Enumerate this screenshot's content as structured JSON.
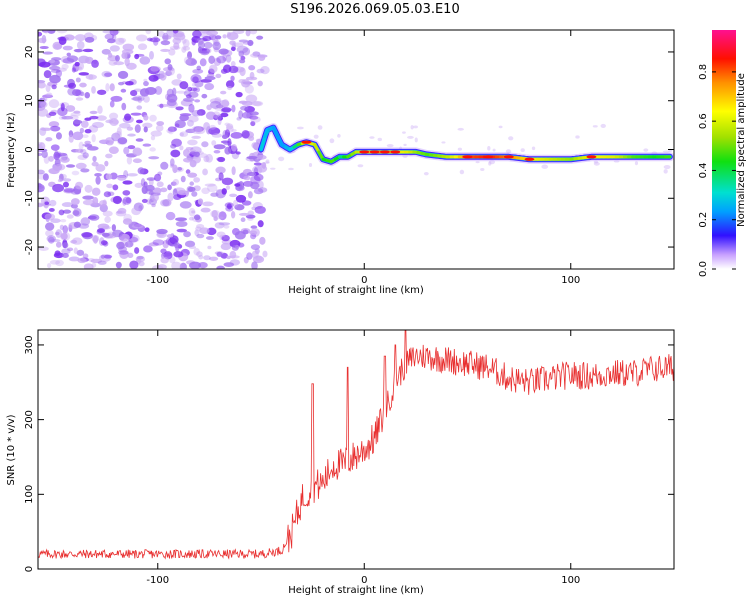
{
  "title": "S196.2026.069.05.03.E10",
  "colors": {
    "noise": "#7a2cf0",
    "noise_light": "#c9a8f5",
    "line": "#e83030",
    "axis": "#000000"
  },
  "chart_data": [
    {
      "type": "heatmap",
      "title": "S196.2026.069.05.03.E10",
      "xlabel": "Height of straight line (km)",
      "ylabel": "Frequency (Hz)",
      "xlim": [
        -158,
        150
      ],
      "ylim": [
        -24.5,
        24.5
      ],
      "xticks": [
        -100,
        0,
        100
      ],
      "yticks": [
        20,
        10,
        0,
        -10,
        -20
      ],
      "noise_region_x": [
        -158,
        -48
      ],
      "ridge": {
        "x": [
          -50,
          -47,
          -44,
          -40,
          -36,
          -32,
          -28,
          -24,
          -20,
          -16,
          -12,
          -8,
          -4,
          0,
          5,
          10,
          15,
          20,
          25,
          30,
          40,
          50,
          60,
          70,
          80,
          90,
          100,
          110,
          120,
          130,
          140,
          148
        ],
        "y": [
          0,
          4,
          4.5,
          1,
          0,
          1,
          1.5,
          1,
          -2,
          -2.5,
          -1.5,
          -1.5,
          -0.5,
          -0.5,
          -0.5,
          -0.5,
          -0.5,
          -0.5,
          -0.5,
          -1,
          -1.5,
          -1.5,
          -1.5,
          -1.5,
          -2,
          -2,
          -2,
          -1.5,
          -1.5,
          -1.5,
          -1.5,
          -1.5
        ],
        "amplitude": [
          0.3,
          0.25,
          0.2,
          0.2,
          0.3,
          0.5,
          0.7,
          0.6,
          0.45,
          0.5,
          0.4,
          0.5,
          0.6,
          0.7,
          0.8,
          0.75,
          0.7,
          0.65,
          0.55,
          0.5,
          0.6,
          0.85,
          0.9,
          0.8,
          0.7,
          0.6,
          0.55,
          0.7,
          0.65,
          0.5,
          0.45,
          0.5
        ]
      },
      "colorbar": {
        "label": "Normalized spectral amplitude",
        "ticks": [
          0.0,
          0.2,
          0.4,
          0.6,
          0.8
        ],
        "tick_labels": [
          "0.0",
          "0.2",
          "0.4",
          "0.6",
          "0.8"
        ],
        "range": [
          0.0,
          0.97
        ]
      }
    },
    {
      "type": "line",
      "xlabel": "Height of straight line (km)",
      "ylabel": "SNR (10 * v/v)",
      "xlim": [
        -158,
        150
      ],
      "ylim": [
        0,
        320
      ],
      "xticks": [
        -100,
        0,
        100
      ],
      "yticks": [
        0,
        100,
        200,
        300
      ],
      "trend": {
        "x": [
          -158,
          -100,
          -50,
          -40,
          -35,
          -30,
          -25,
          -20,
          -15,
          -10,
          -5,
          0,
          5,
          10,
          15,
          20,
          25,
          30,
          40,
          50,
          60,
          70,
          80,
          90,
          100,
          110,
          120,
          130,
          140,
          150
        ],
        "y": [
          20,
          20,
          20,
          25,
          50,
          95,
          110,
          115,
          140,
          140,
          150,
          160,
          175,
          210,
          250,
          275,
          285,
          285,
          280,
          275,
          270,
          255,
          250,
          255,
          260,
          258,
          262,
          262,
          268,
          270
        ]
      },
      "spikes": [
        {
          "x": -25,
          "y": 248
        },
        {
          "x": -8,
          "y": 270
        },
        {
          "x": 10,
          "y": 285
        },
        {
          "x": 15,
          "y": 300
        },
        {
          "x": 20,
          "y": 320
        }
      ]
    }
  ]
}
